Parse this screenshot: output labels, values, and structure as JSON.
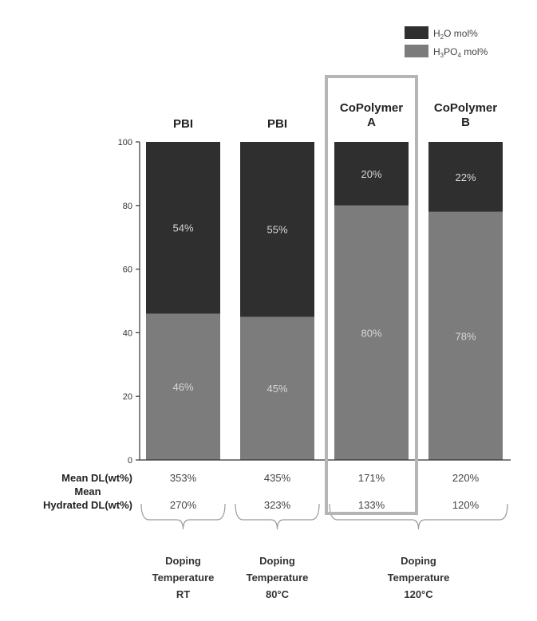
{
  "chart_data": {
    "type": "bar",
    "stacked": true,
    "categories": [
      "PBI",
      "PBI",
      "CoPolymer A",
      "CoPolymer B"
    ],
    "category_lines": [
      [
        "PBI"
      ],
      [
        "PBI"
      ],
      [
        "CoPolymer",
        "A"
      ],
      [
        "CoPolymer",
        "B"
      ]
    ],
    "series": [
      {
        "name": "H3PO4 mol%",
        "values": [
          46,
          45,
          80,
          78
        ],
        "labels": [
          "46%",
          "45%",
          "80%",
          "78%"
        ],
        "color": "#7c7c7c"
      },
      {
        "name": "H2O mol%",
        "values": [
          54,
          55,
          20,
          22
        ],
        "labels": [
          "54%",
          "55%",
          "20%",
          "22%"
        ],
        "color": "#2f2f2f"
      }
    ],
    "legend": {
      "placement": "top-right",
      "items": [
        {
          "main": "H",
          "sub": "2",
          "rest": "O mol%",
          "color": "#2f2f2f"
        },
        {
          "main": "H",
          "sub": "3",
          "mid": "PO",
          "sub2": "4",
          "rest": " mol%",
          "color": "#7c7c7c"
        }
      ]
    },
    "ylim": [
      0,
      100
    ],
    "yticks": [
      0,
      20,
      40,
      60,
      80,
      100
    ],
    "highlighted_category": "CoPolymer A",
    "table": {
      "rows": [
        {
          "header_lines": [
            "Mean DL(wt%)"
          ],
          "values": [
            "353%",
            "435%",
            "171%",
            "220%"
          ]
        },
        {
          "header_lines": [
            "Mean",
            "Hydrated DL(wt%)"
          ],
          "values": [
            "270%",
            "323%",
            "133%",
            "120%"
          ]
        }
      ]
    },
    "groups": [
      {
        "lines": [
          "Doping",
          "Temperature",
          "RT"
        ],
        "span": [
          0,
          0
        ]
      },
      {
        "lines": [
          "Doping",
          "Temperature",
          "80°C"
        ],
        "span": [
          1,
          1
        ]
      },
      {
        "lines": [
          "Doping",
          "Temperature",
          "120°C"
        ],
        "span": [
          2,
          3
        ]
      }
    ]
  }
}
